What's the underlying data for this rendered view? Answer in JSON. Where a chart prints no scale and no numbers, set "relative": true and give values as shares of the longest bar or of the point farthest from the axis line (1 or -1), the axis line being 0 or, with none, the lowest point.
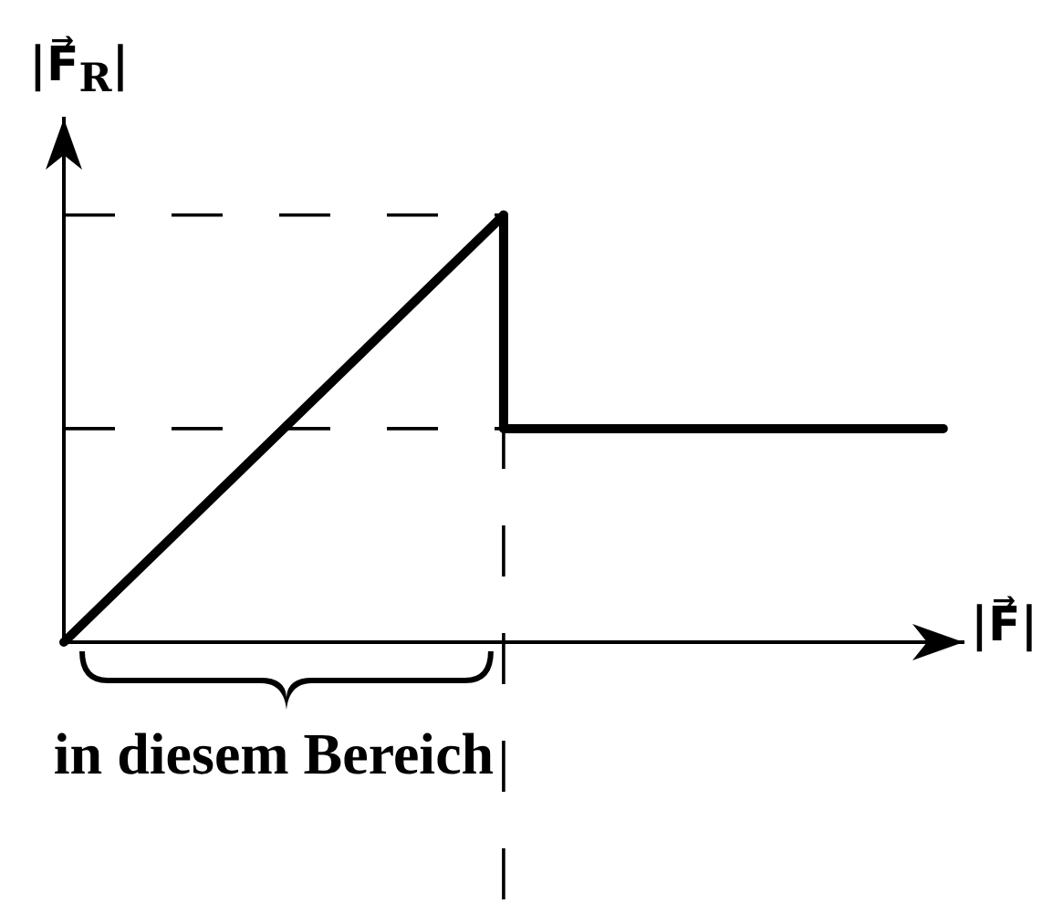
{
  "chart_data": {
    "type": "line",
    "relative": true,
    "categories": [
      null,
      null,
      null
    ],
    "series": [
      {
        "color": "#000000",
        "values": [
          0,
          1,
          null
        ]
      },
      {
        "type": "step",
        "color": "#000000",
        "values": [
          null,
          1,
          0.5
        ]
      }
    ],
    "xlabel": "|F⃗|",
    "ylabel": "|F⃗$_{R}$|",
    "annotations": [
      "in diesem Bereich"
    ],
    "ref_lines": [
      {
        "axis": "y",
        "value": 1,
        "line_style": "dashed",
        "color": "#000000"
      },
      {
        "axis": "y",
        "value": 0.5,
        "line_style": "dashed",
        "color": "#000000"
      }
    ],
    "legend": false,
    "marker": "none",
    "line_style": "solid"
  }
}
